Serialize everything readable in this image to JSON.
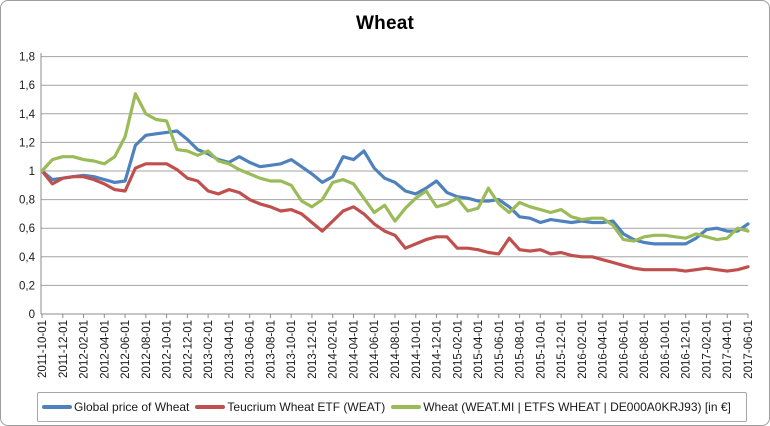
{
  "window": {
    "background": "#ffffff",
    "border_color": "#9d9d9d"
  },
  "styles": {
    "gridline_color": "#a3a3a3",
    "axis_color": "#8c8c8c",
    "tick_color": "#8c8c8c",
    "text_color": "#1a1a1a",
    "legend_border_color": "#a6a6a6"
  },
  "chart_data": {
    "type": "line",
    "title": "Wheat",
    "xlabel": "",
    "ylabel": "",
    "ylim": [
      0,
      1.8
    ],
    "y_step": 0.2,
    "grid": true,
    "legend_position": "bottom",
    "decimal_separator": ",",
    "y_tick_labels": [
      "0",
      "0,2",
      "0,4",
      "0,6",
      "0,8",
      "1",
      "1,2",
      "1,4",
      "1,6",
      "1,8"
    ],
    "x_tick_labels": [
      "2011-10-01",
      "2011-12-01",
      "2012-02-01",
      "2012-04-01",
      "2012-06-01",
      "2012-08-01",
      "2012-10-01",
      "2012-12-01",
      "2013-02-01",
      "2013-04-01",
      "2013-06-01",
      "2013-08-01",
      "2013-10-01",
      "2013-12-01",
      "2014-02-01",
      "2014-04-01",
      "2014-06-01",
      "2014-08-01",
      "2014-10-01",
      "2014-12-01",
      "2015-02-01",
      "2015-04-01",
      "2015-06-01",
      "2015-08-01",
      "2015-10-01",
      "2015-12-01",
      "2016-02-01",
      "2016-04-01",
      "2016-06-01",
      "2016-08-01",
      "2016-10-01",
      "2016-12-01",
      "2017-02-01",
      "2017-04-01",
      "2017-06-01"
    ],
    "points_per_x_tick": 2,
    "x_range_note": "monthly points from 2011-10 to 2017-06, all series indexed to 1.0 at start",
    "series": [
      {
        "name": "Global price of Wheat",
        "color": "#4F81BD",
        "values": [
          1.0,
          0.94,
          0.95,
          0.96,
          0.97,
          0.96,
          0.94,
          0.92,
          0.93,
          1.18,
          1.25,
          1.26,
          1.27,
          1.28,
          1.22,
          1.15,
          1.12,
          1.08,
          1.06,
          1.1,
          1.06,
          1.03,
          1.04,
          1.05,
          1.08,
          1.03,
          0.98,
          0.92,
          0.96,
          1.1,
          1.08,
          1.14,
          1.02,
          0.95,
          0.92,
          0.86,
          0.84,
          0.88,
          0.93,
          0.85,
          0.82,
          0.81,
          0.79,
          0.79,
          0.8,
          0.75,
          0.68,
          0.67,
          0.64,
          0.66,
          0.65,
          0.64,
          0.65,
          0.64,
          0.64,
          0.65,
          0.56,
          0.52,
          0.5,
          0.49,
          0.49,
          0.49,
          0.49,
          0.53,
          0.59,
          0.6,
          0.58,
          0.58,
          0.63
        ]
      },
      {
        "name": "Teucrium Wheat ETF (WEAT)",
        "color": "#C0504D",
        "values": [
          1.0,
          0.91,
          0.95,
          0.96,
          0.96,
          0.94,
          0.91,
          0.87,
          0.86,
          1.02,
          1.05,
          1.05,
          1.05,
          1.01,
          0.95,
          0.93,
          0.86,
          0.84,
          0.87,
          0.85,
          0.8,
          0.77,
          0.75,
          0.72,
          0.73,
          0.7,
          0.64,
          0.58,
          0.65,
          0.72,
          0.75,
          0.7,
          0.63,
          0.58,
          0.55,
          0.46,
          0.49,
          0.52,
          0.54,
          0.54,
          0.46,
          0.46,
          0.45,
          0.43,
          0.42,
          0.53,
          0.45,
          0.44,
          0.45,
          0.42,
          0.43,
          0.41,
          0.4,
          0.4,
          0.38,
          0.36,
          0.34,
          0.32,
          0.31,
          0.31,
          0.31,
          0.31,
          0.3,
          0.31,
          0.32,
          0.31,
          0.3,
          0.31,
          0.33
        ]
      },
      {
        "name": "Wheat (WEAT.MI  |  ETFS  WHEAT  |  DE000A0KRJ93) [in €]",
        "color": "#9BBB59",
        "values": [
          1.0,
          1.08,
          1.1,
          1.1,
          1.08,
          1.07,
          1.05,
          1.1,
          1.24,
          1.54,
          1.4,
          1.36,
          1.35,
          1.15,
          1.14,
          1.11,
          1.14,
          1.07,
          1.05,
          1.01,
          0.98,
          0.95,
          0.93,
          0.93,
          0.9,
          0.79,
          0.75,
          0.8,
          0.92,
          0.94,
          0.91,
          0.81,
          0.71,
          0.76,
          0.65,
          0.74,
          0.81,
          0.86,
          0.75,
          0.77,
          0.81,
          0.72,
          0.74,
          0.88,
          0.77,
          0.71,
          0.78,
          0.75,
          0.73,
          0.71,
          0.73,
          0.68,
          0.66,
          0.67,
          0.67,
          0.62,
          0.52,
          0.51,
          0.54,
          0.55,
          0.55,
          0.54,
          0.53,
          0.56,
          0.54,
          0.52,
          0.53,
          0.6,
          0.58
        ]
      }
    ]
  }
}
